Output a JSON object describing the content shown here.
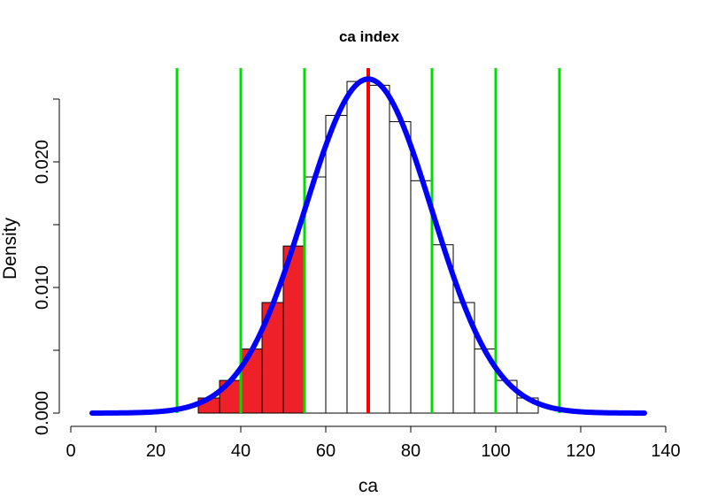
{
  "chart_data": {
    "type": "histogram",
    "title": "ca index",
    "xlabel": "ca",
    "ylabel": "Density",
    "xlim": [
      0,
      140
    ],
    "ylim": [
      0,
      0.025
    ],
    "x_ticks": [
      "0",
      "20",
      "40",
      "60",
      "80",
      "100",
      "120",
      "140"
    ],
    "y_ticks": [
      "0.000",
      "0.010",
      "0.020"
    ],
    "bin_width": 5,
    "bins": [
      {
        "start": 30,
        "end": 35,
        "density": 0.0012
      },
      {
        "start": 35,
        "end": 40,
        "density": 0.0026
      },
      {
        "start": 40,
        "end": 45,
        "density": 0.0051
      },
      {
        "start": 45,
        "end": 50,
        "density": 0.0088
      },
      {
        "start": 50,
        "end": 55,
        "density": 0.0133
      },
      {
        "start": 55,
        "end": 60,
        "density": 0.0188
      },
      {
        "start": 60,
        "end": 65,
        "density": 0.0237
      },
      {
        "start": 65,
        "end": 70,
        "density": 0.0264
      },
      {
        "start": 70,
        "end": 75,
        "density": 0.0261
      },
      {
        "start": 75,
        "end": 80,
        "density": 0.0232
      },
      {
        "start": 80,
        "end": 85,
        "density": 0.0185
      },
      {
        "start": 85,
        "end": 90,
        "density": 0.0134
      },
      {
        "start": 90,
        "end": 95,
        "density": 0.0088
      },
      {
        "start": 95,
        "end": 100,
        "density": 0.0051
      },
      {
        "start": 100,
        "end": 105,
        "density": 0.0026
      },
      {
        "start": 105,
        "end": 110,
        "density": 0.0012
      }
    ],
    "shaded_below": 55,
    "normal_curve": {
      "mean": 70,
      "sd": 15,
      "x_range": [
        5,
        135
      ]
    },
    "vertical_lines": {
      "mean": {
        "x": 70,
        "color": "#ff0000"
      },
      "sd_marks": {
        "x": [
          25,
          40,
          55,
          85,
          100,
          115
        ],
        "color": "#00dd00"
      }
    },
    "colors": {
      "bar_fill": "#ffffff",
      "shaded_fill": "#ee2028",
      "bar_stroke": "#000000",
      "curve": "#0000ff"
    },
    "grid": false,
    "legend": "none"
  }
}
